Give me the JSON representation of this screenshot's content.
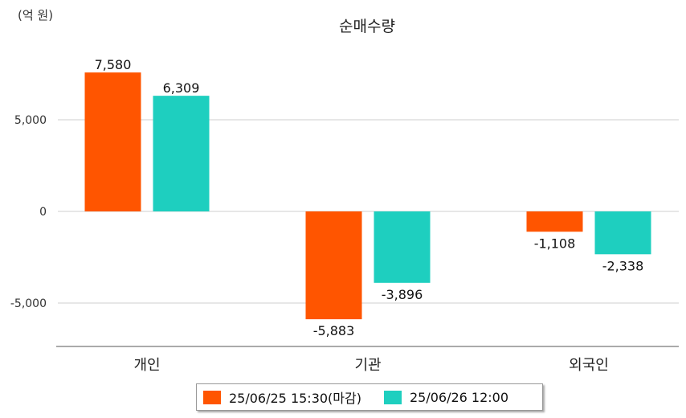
{
  "chart_data": {
    "type": "bar",
    "title": "순매수량",
    "unit_label": "(억 원)",
    "categories": [
      "개인",
      "기관",
      "외국인"
    ],
    "series": [
      {
        "name": "25/06/25 15:30(마감)",
        "color": "#ff5500",
        "values": [
          7580,
          -5883,
          -1108
        ],
        "labels": [
          "7,580",
          "-5,883",
          "-1,108"
        ]
      },
      {
        "name": "25/06/26 12:00",
        "color": "#1ecfbf",
        "values": [
          6309,
          -3896,
          -2338
        ],
        "labels": [
          "6,309",
          "-3,896",
          "-2,338"
        ]
      }
    ],
    "yticks": [
      5000,
      0,
      -5000
    ],
    "ytick_labels": [
      "5,000",
      "0",
      "-5,000"
    ],
    "ylim": [
      -7400,
      9300
    ],
    "grid": true,
    "legend_position": "bottom"
  }
}
